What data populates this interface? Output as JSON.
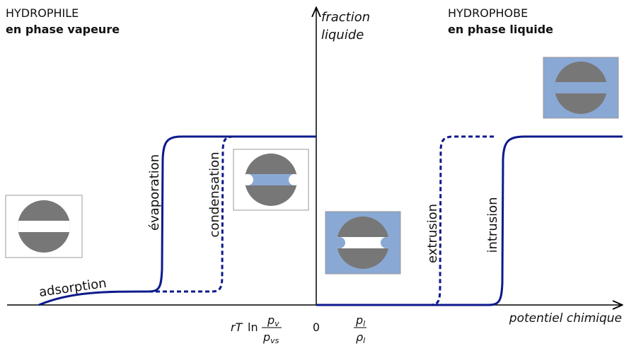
{
  "left_header": {
    "title": "HYDROPHILE",
    "subtitle": "en phase vapeure"
  },
  "right_header": {
    "title": "HYDROPHOBE",
    "subtitle": "en phase liquide"
  },
  "y_axis": {
    "line1": "fraction",
    "line2": "liquide"
  },
  "x_axis": {
    "label": "potentiel chimique",
    "origin": "0",
    "left_mark": {
      "prefix_italic": "rT",
      "prefix": "ln",
      "numerator": "p",
      "numerator_sub": "v",
      "denominator": "p",
      "denominator_sub": "vs"
    },
    "right_mark": {
      "numerator": "p",
      "numerator_sub": "l",
      "denominator": "ρ",
      "denominator_sub": "l"
    }
  },
  "curve_labels": {
    "adsorption": "adsorption",
    "evaporation": "évaporation",
    "condensation": "condensation",
    "extrusion": "extrusion",
    "intrusion": "intrusion"
  }
}
